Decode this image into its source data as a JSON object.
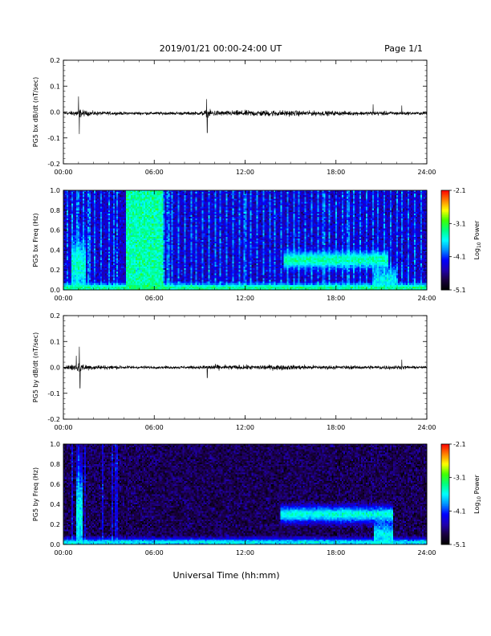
{
  "header": {
    "date_range": "2019/01/21  00:00-24:00 UT",
    "page": "Page 1/1"
  },
  "x_axis": {
    "label": "Universal Time (hh:mm)",
    "ticks": [
      "00:00",
      "06:00",
      "12:00",
      "18:00",
      "24:00"
    ],
    "range_hours": [
      0,
      24
    ]
  },
  "colorbar": {
    "title_prefix": "Log",
    "title_sub": "10",
    "title_suffix": " Power",
    "ticks": [
      "-2.1",
      "-3.1",
      "-4.1",
      "-5.1"
    ],
    "range": [
      -5.1,
      -2.1
    ],
    "colormap": [
      "#000000",
      "#1a0040",
      "#2000b0",
      "#0000ff",
      "#0090ff",
      "#00ffff",
      "#00ff80",
      "#40ff00",
      "#ffff00",
      "#ff8000",
      "#ff0000"
    ]
  },
  "chart_data": [
    {
      "type": "line",
      "ylabel": "PG5 bx dB/dt (nT/sec)",
      "ylim": [
        -0.2,
        0.2
      ],
      "yticks": [
        "0.2",
        "0.1",
        "0.0",
        "-0.1",
        "-0.2"
      ],
      "xlim": [
        0,
        24
      ],
      "series_color": "#000000",
      "baseline": -0.005,
      "noise_envelope": {
        "x_hours": [
          0,
          0.7,
          1.0,
          1.5,
          2.5,
          4.0,
          6.0,
          9.0,
          9.5,
          10.5,
          12.0,
          14.0,
          16.0,
          18.0,
          20.0,
          21.0,
          22.0,
          24.0
        ],
        "amplitude": [
          0.006,
          0.015,
          0.025,
          0.014,
          0.01,
          0.008,
          0.008,
          0.009,
          0.02,
          0.014,
          0.016,
          0.017,
          0.014,
          0.012,
          0.01,
          0.012,
          0.01,
          0.007
        ]
      },
      "spikes": [
        {
          "x": 1.0,
          "y": 0.06
        },
        {
          "x": 1.05,
          "y": -0.085
        },
        {
          "x": 9.45,
          "y": 0.05
        },
        {
          "x": 9.5,
          "y": -0.08
        },
        {
          "x": 20.45,
          "y": 0.03
        },
        {
          "x": 22.35,
          "y": 0.025
        }
      ]
    },
    {
      "type": "heatmap",
      "ylabel": "PG5 bx Freq (Hz)",
      "ylim": [
        0,
        1
      ],
      "yticks": [
        "1.0",
        "0.8",
        "0.6",
        "0.4",
        "0.2",
        "0.0"
      ],
      "xlim": [
        0,
        24
      ],
      "zlim": [
        -5.1,
        -2.1
      ],
      "background_log_power": -4.4,
      "broadband_bursts": [
        {
          "x_start": 4.1,
          "x_end": 6.6,
          "log_power": -3.4
        }
      ],
      "vertical_streaks_hours": [
        0.3,
        0.6,
        0.95,
        1.3,
        1.7,
        2.1,
        2.5,
        3.0,
        3.3,
        3.6,
        6.6,
        6.9,
        7.2,
        7.6,
        8.0,
        8.4,
        8.8,
        9.2,
        9.6,
        10.0,
        10.4,
        10.8,
        11.2,
        11.6,
        12.0,
        12.4,
        12.8,
        13.2,
        13.6,
        14.0,
        14.4,
        14.8,
        15.2,
        15.6,
        16.0,
        16.4,
        16.8,
        17.2,
        17.6,
        18.0,
        18.4,
        18.8,
        19.2,
        19.6,
        20.0,
        20.4,
        20.8,
        21.2,
        21.6,
        22.0,
        22.4,
        22.8,
        23.2,
        23.6
      ],
      "features": [
        {
          "x_start": 14.5,
          "x_end": 21.5,
          "f_center": 0.3,
          "f_width": 0.08,
          "log_power": -3.4
        },
        {
          "x_start": 0.5,
          "x_end": 1.5,
          "f_center": 0.25,
          "f_width": 0.25,
          "log_power": -3.5
        },
        {
          "x_start": 0.0,
          "x_end": 24.0,
          "f_center": 0.02,
          "f_width": 0.04,
          "log_power": -3.3
        },
        {
          "x_start": 20.5,
          "x_end": 22.0,
          "f_center": 0.1,
          "f_width": 0.12,
          "log_power": -3.6
        }
      ]
    },
    {
      "type": "line",
      "ylabel": "PG5 by dB/dt (nT/sec)",
      "ylim": [
        -0.2,
        0.2
      ],
      "yticks": [
        "0.2",
        "0.1",
        "0.0",
        "-0.1",
        "-0.2"
      ],
      "xlim": [
        0,
        24
      ],
      "series_color": "#000000",
      "baseline": 0.0,
      "noise_envelope": {
        "x_hours": [
          0,
          0.7,
          1.0,
          1.5,
          2.5,
          3.5,
          6.0,
          9.0,
          9.5,
          10.5,
          12.0,
          14.0,
          16.0,
          18.0,
          20.0,
          21.0,
          22.0,
          24.0
        ],
        "amplitude": [
          0.006,
          0.02,
          0.03,
          0.016,
          0.012,
          0.01,
          0.007,
          0.008,
          0.015,
          0.013,
          0.012,
          0.014,
          0.012,
          0.01,
          0.009,
          0.012,
          0.01,
          0.006
        ]
      },
      "spikes": [
        {
          "x": 1.05,
          "y": 0.08
        },
        {
          "x": 1.1,
          "y": -0.08
        },
        {
          "x": 0.85,
          "y": 0.045
        },
        {
          "x": 9.5,
          "y": -0.04
        },
        {
          "x": 22.35,
          "y": 0.03
        }
      ]
    },
    {
      "type": "heatmap",
      "ylabel": "PG5 by Freq (Hz)",
      "ylim": [
        0,
        1
      ],
      "yticks": [
        "1.0",
        "0.8",
        "0.6",
        "0.4",
        "0.2",
        "0.0"
      ],
      "xlim": [
        0,
        24
      ],
      "zlim": [
        -5.1,
        -2.1
      ],
      "background_log_power": -4.75,
      "broadband_bursts": [],
      "vertical_streaks_hours": [
        0.6,
        1.05,
        1.4,
        2.6,
        3.2,
        3.5
      ],
      "features": [
        {
          "x_start": 14.3,
          "x_end": 21.8,
          "f_center": 0.3,
          "f_width": 0.08,
          "log_power": -3.5
        },
        {
          "x_start": 0.8,
          "x_end": 1.3,
          "f_center": 0.3,
          "f_width": 0.5,
          "log_power": -3.6
        },
        {
          "x_start": 0.0,
          "x_end": 24.0,
          "f_center": 0.02,
          "f_width": 0.04,
          "log_power": -3.6
        },
        {
          "x_start": 20.5,
          "x_end": 21.8,
          "f_center": 0.1,
          "f_width": 0.12,
          "log_power": -3.6
        }
      ]
    }
  ]
}
